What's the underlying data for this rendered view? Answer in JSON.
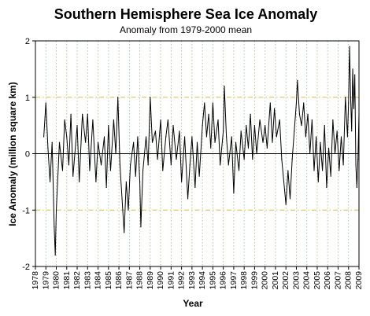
{
  "chart_data": {
    "type": "line",
    "title": "Southern Hemisphere Sea Ice Anomaly",
    "subtitle": "Anomaly from 1979-2000 mean",
    "xlabel": "Year",
    "ylabel": "Ice Anomaly (million square km)",
    "xlim": [
      1978,
      2009
    ],
    "ylim": [
      -2,
      2
    ],
    "x_ticks": [
      "1978",
      "1979",
      "1980",
      "1981",
      "1982",
      "1983",
      "1984",
      "1985",
      "1986",
      "1987",
      "1988",
      "1989",
      "1990",
      "1991",
      "1992",
      "1993",
      "1994",
      "1995",
      "1996",
      "1997",
      "1998",
      "1999",
      "2000",
      "2001",
      "2002",
      "2003",
      "2004",
      "2005",
      "2006",
      "2007",
      "2008",
      "2009"
    ],
    "y_ticks": [
      "-2",
      "-1",
      "0",
      "1",
      "2"
    ],
    "grid": {
      "vertical": "dotted",
      "horizontal_at": [
        -1,
        1
      ],
      "zero_line": true
    },
    "colors": {
      "series": "#000000",
      "vertical_grid": "#8fc18f",
      "horizontal_grid": "#d9bd45",
      "axes": "#000000"
    },
    "series": [
      {
        "values": [
          [
            1978.8,
            0.3
          ],
          [
            1979.0,
            0.9
          ],
          [
            1979.2,
            0.1
          ],
          [
            1979.4,
            -0.5
          ],
          [
            1979.6,
            0.2
          ],
          [
            1979.8,
            -1.3
          ],
          [
            1979.9,
            -1.8
          ],
          [
            1980.0,
            -1.0
          ],
          [
            1980.3,
            0.2
          ],
          [
            1980.6,
            -0.3
          ],
          [
            1980.8,
            0.6
          ],
          [
            1981.0,
            0.3
          ],
          [
            1981.2,
            -0.2
          ],
          [
            1981.4,
            0.7
          ],
          [
            1981.6,
            -0.4
          ],
          [
            1982.0,
            0.5
          ],
          [
            1982.2,
            -0.5
          ],
          [
            1982.5,
            0.7
          ],
          [
            1982.8,
            0.2
          ],
          [
            1983.0,
            0.7
          ],
          [
            1983.2,
            -0.3
          ],
          [
            1983.5,
            0.6
          ],
          [
            1983.8,
            -0.5
          ],
          [
            1984.0,
            0.2
          ],
          [
            1984.3,
            -0.2
          ],
          [
            1984.6,
            0.3
          ],
          [
            1984.8,
            -0.6
          ],
          [
            1985.0,
            0.5
          ],
          [
            1985.2,
            -0.3
          ],
          [
            1985.5,
            0.6
          ],
          [
            1985.7,
            0.0
          ],
          [
            1985.9,
            1.0
          ],
          [
            1986.1,
            -0.2
          ],
          [
            1986.3,
            -0.8
          ],
          [
            1986.5,
            -1.4
          ],
          [
            1986.7,
            -0.5
          ],
          [
            1986.9,
            -1.0
          ],
          [
            1987.1,
            -0.2
          ],
          [
            1987.4,
            0.2
          ],
          [
            1987.6,
            -0.4
          ],
          [
            1987.8,
            0.3
          ],
          [
            1988.0,
            -0.5
          ],
          [
            1988.1,
            -1.3
          ],
          [
            1988.3,
            -0.3
          ],
          [
            1988.6,
            0.3
          ],
          [
            1988.8,
            -0.2
          ],
          [
            1989.0,
            1.0
          ],
          [
            1989.2,
            0.2
          ],
          [
            1989.5,
            0.4
          ],
          [
            1989.7,
            -0.1
          ],
          [
            1990.0,
            0.6
          ],
          [
            1990.2,
            -0.3
          ],
          [
            1990.5,
            0.3
          ],
          [
            1990.7,
            0.6
          ],
          [
            1991.0,
            -0.2
          ],
          [
            1991.2,
            0.5
          ],
          [
            1991.5,
            -0.1
          ],
          [
            1991.8,
            0.4
          ],
          [
            1992.0,
            -0.5
          ],
          [
            1992.3,
            0.3
          ],
          [
            1992.6,
            -0.8
          ],
          [
            1992.8,
            -0.2
          ],
          [
            1993.0,
            0.3
          ],
          [
            1993.3,
            -0.6
          ],
          [
            1993.5,
            0.2
          ],
          [
            1993.7,
            -0.4
          ],
          [
            1994.0,
            0.5
          ],
          [
            1994.2,
            0.9
          ],
          [
            1994.4,
            0.3
          ],
          [
            1994.6,
            0.7
          ],
          [
            1994.8,
            0.1
          ],
          [
            1995.0,
            0.9
          ],
          [
            1995.2,
            0.2
          ],
          [
            1995.5,
            0.6
          ],
          [
            1995.7,
            -0.2
          ],
          [
            1996.0,
            0.4
          ],
          [
            1996.1,
            1.2
          ],
          [
            1996.3,
            0.3
          ],
          [
            1996.5,
            -0.2
          ],
          [
            1996.8,
            0.3
          ],
          [
            1997.0,
            -0.7
          ],
          [
            1997.2,
            0.2
          ],
          [
            1997.5,
            -0.3
          ],
          [
            1997.7,
            0.4
          ],
          [
            1998.0,
            -0.1
          ],
          [
            1998.2,
            0.5
          ],
          [
            1998.4,
            0.1
          ],
          [
            1998.6,
            0.7
          ],
          [
            1998.8,
            -0.1
          ],
          [
            1999.0,
            0.5
          ],
          [
            1999.2,
            0.0
          ],
          [
            1999.5,
            0.6
          ],
          [
            1999.8,
            0.2
          ],
          [
            2000.0,
            0.5
          ],
          [
            2000.2,
            0.1
          ],
          [
            2000.5,
            0.9
          ],
          [
            2000.7,
            0.2
          ],
          [
            2000.9,
            0.8
          ],
          [
            2001.1,
            0.3
          ],
          [
            2001.4,
            0.6
          ],
          [
            2001.6,
            -0.1
          ],
          [
            2001.8,
            -0.5
          ],
          [
            2002.0,
            -0.9
          ],
          [
            2002.2,
            -0.3
          ],
          [
            2002.4,
            -0.8
          ],
          [
            2002.6,
            -0.1
          ],
          [
            2002.8,
            0.4
          ],
          [
            2003.0,
            0.9
          ],
          [
            2003.1,
            1.3
          ],
          [
            2003.3,
            0.7
          ],
          [
            2003.5,
            0.5
          ],
          [
            2003.7,
            0.9
          ],
          [
            2003.9,
            0.3
          ],
          [
            2004.1,
            0.7
          ],
          [
            2004.3,
            0.0
          ],
          [
            2004.5,
            0.6
          ],
          [
            2004.7,
            -0.3
          ],
          [
            2004.9,
            0.3
          ],
          [
            2005.1,
            -0.5
          ],
          [
            2005.3,
            0.2
          ],
          [
            2005.5,
            -0.3
          ],
          [
            2005.7,
            0.5
          ],
          [
            2005.9,
            -0.6
          ],
          [
            2006.1,
            0.1
          ],
          [
            2006.3,
            -0.4
          ],
          [
            2006.5,
            0.6
          ],
          [
            2006.7,
            0.0
          ],
          [
            2006.9,
            0.4
          ],
          [
            2007.1,
            -0.3
          ],
          [
            2007.3,
            0.3
          ],
          [
            2007.5,
            -0.2
          ],
          [
            2007.7,
            1.0
          ],
          [
            2007.9,
            0.3
          ],
          [
            2008.0,
            0.9
          ],
          [
            2008.1,
            1.9
          ],
          [
            2008.2,
            1.0
          ],
          [
            2008.3,
            0.4
          ],
          [
            2008.4,
            1.5
          ],
          [
            2008.5,
            0.8
          ],
          [
            2008.6,
            1.4
          ],
          [
            2008.7,
            -0.2
          ],
          [
            2008.8,
            -0.6
          ],
          [
            2008.9,
            -0.1
          ],
          [
            2009.0,
            0.7
          ]
        ]
      }
    ]
  }
}
